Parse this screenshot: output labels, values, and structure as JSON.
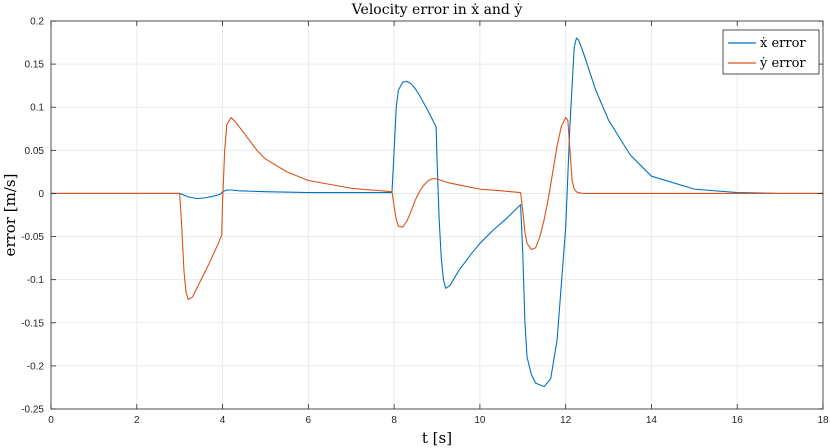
{
  "chart_data": {
    "type": "line",
    "title": "Velocity error in ẋ and ẏ",
    "xlabel": "t [s]",
    "ylabel": "error [m/s]",
    "xlim": [
      0,
      18
    ],
    "ylim": [
      -0.25,
      0.2
    ],
    "xticks": [
      0,
      2,
      4,
      6,
      8,
      10,
      12,
      14,
      16,
      18
    ],
    "yticks": [
      -0.25,
      -0.2,
      -0.15,
      -0.1,
      -0.05,
      0,
      0.05,
      0.1,
      0.15,
      0.2
    ],
    "grid": true,
    "legend_position": "top-right",
    "series": [
      {
        "name": "ẋ error",
        "color": "#0072BD",
        "x": [
          0,
          3.0,
          3.1,
          3.2,
          3.4,
          3.6,
          3.8,
          3.95,
          4.0,
          4.1,
          4.2,
          4.4,
          5.0,
          6.0,
          7.0,
          7.95,
          8.0,
          8.05,
          8.1,
          8.2,
          8.3,
          8.4,
          8.5,
          8.6,
          8.7,
          8.8,
          8.9,
          8.98,
          9.0,
          9.05,
          9.1,
          9.15,
          9.2,
          9.3,
          9.5,
          9.8,
          10.0,
          10.3,
          10.6,
          10.95,
          11.0,
          11.05,
          11.1,
          11.2,
          11.3,
          11.5,
          11.65,
          11.8,
          12.0,
          12.1,
          12.2,
          12.25,
          12.3,
          12.4,
          12.5,
          12.7,
          13.0,
          13.5,
          14.0,
          15.0,
          16.0,
          17.0,
          18.0
        ],
        "y": [
          0,
          0,
          -0.002,
          -0.004,
          -0.006,
          -0.005,
          -0.003,
          -0.001,
          0.002,
          0.004,
          0.004,
          0.003,
          0.002,
          0.001,
          0.001,
          0.001,
          0.05,
          0.1,
          0.12,
          0.129,
          0.13,
          0.127,
          0.121,
          0.113,
          0.104,
          0.095,
          0.085,
          0.077,
          0.04,
          -0.03,
          -0.075,
          -0.1,
          -0.11,
          -0.107,
          -0.09,
          -0.07,
          -0.058,
          -0.043,
          -0.03,
          -0.013,
          -0.07,
          -0.15,
          -0.19,
          -0.21,
          -0.22,
          -0.224,
          -0.215,
          -0.17,
          -0.04,
          0.08,
          0.17,
          0.18,
          0.178,
          0.165,
          0.15,
          0.12,
          0.085,
          0.045,
          0.02,
          0.005,
          0.001,
          0,
          0
        ]
      },
      {
        "name": "ẏ error",
        "color": "#D95319",
        "x": [
          0,
          3.0,
          3.05,
          3.1,
          3.15,
          3.2,
          3.3,
          3.5,
          3.7,
          3.9,
          3.98,
          4.0,
          4.05,
          4.1,
          4.2,
          4.3,
          4.5,
          4.8,
          5.0,
          5.5,
          6.0,
          7.0,
          7.95,
          8.0,
          8.05,
          8.1,
          8.2,
          8.3,
          8.4,
          8.5,
          8.6,
          8.7,
          8.8,
          8.9,
          9.0,
          9.1,
          9.3,
          9.6,
          10.0,
          10.5,
          10.95,
          11.0,
          11.05,
          11.1,
          11.2,
          11.3,
          11.4,
          11.5,
          11.6,
          11.7,
          11.8,
          11.9,
          12.0,
          12.05,
          12.1,
          12.15,
          12.2,
          12.25,
          12.3,
          12.4,
          12.5,
          13.0,
          14.0,
          18.0
        ],
        "y": [
          0,
          0,
          -0.04,
          -0.09,
          -0.115,
          -0.123,
          -0.12,
          -0.1,
          -0.08,
          -0.058,
          -0.048,
          -0.01,
          0.05,
          0.08,
          0.088,
          0.083,
          0.07,
          0.05,
          0.04,
          0.025,
          0.015,
          0.006,
          0.002,
          -0.015,
          -0.03,
          -0.038,
          -0.039,
          -0.032,
          -0.02,
          -0.007,
          0.003,
          0.01,
          0.015,
          0.017,
          0.017,
          0.015,
          0.012,
          0.009,
          0.005,
          0.003,
          0.001,
          -0.02,
          -0.045,
          -0.058,
          -0.065,
          -0.063,
          -0.05,
          -0.03,
          -0.005,
          0.025,
          0.055,
          0.078,
          0.088,
          0.085,
          0.05,
          0.015,
          0.005,
          0.002,
          0.001,
          0,
          0,
          0,
          0,
          0
        ]
      }
    ]
  }
}
